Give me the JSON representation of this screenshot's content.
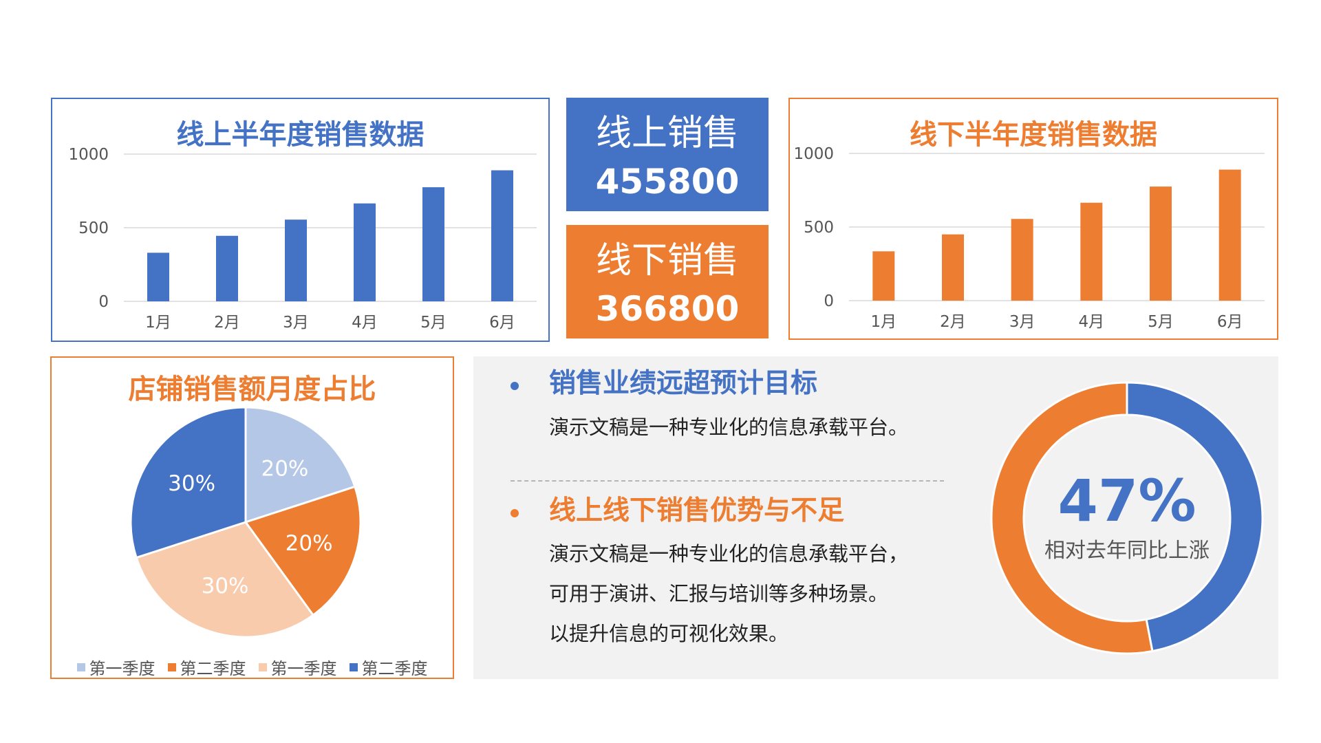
{
  "colors": {
    "blue": "#4472c4",
    "orange": "#ed7d31",
    "light_blue": "#b4c7e7",
    "peach": "#f8cbad",
    "panel_gray": "#f2f2f2"
  },
  "kpis": {
    "online_label": "线上销售",
    "online_value": "455800",
    "offline_label": "线下销售",
    "offline_value": "366800"
  },
  "points": [
    {
      "title": "销售业绩远超预计目标",
      "lines": [
        "演示文稿是一种专业化的信息承载平台。"
      ]
    },
    {
      "title": "线上线下销售优势与不足",
      "lines": [
        "演示文稿是一种专业化的信息承载平台，",
        "可用于演讲、汇报与培训等多种场景。",
        "以提升信息的可视化效果。"
      ]
    }
  ],
  "donut": {
    "value": 47,
    "value_text": "47%",
    "caption": "相对去年同比上涨"
  },
  "chart_data": [
    {
      "type": "bar",
      "title": "线上半年度销售数据",
      "categories": [
        "1月",
        "2月",
        "3月",
        "4月",
        "5月",
        "6月"
      ],
      "values": [
        330,
        445,
        555,
        665,
        775,
        890
      ],
      "ylim": [
        0,
        1000
      ],
      "yticks": [
        "0",
        "500",
        "1000"
      ],
      "color": "#4472c4",
      "grid": true
    },
    {
      "type": "bar",
      "title": "线下半年度销售数据",
      "categories": [
        "1月",
        "2月",
        "3月",
        "4月",
        "5月",
        "6月"
      ],
      "values": [
        335,
        450,
        555,
        665,
        775,
        890
      ],
      "ylim": [
        0,
        1000
      ],
      "yticks": [
        "0",
        "500",
        "1000"
      ],
      "color": "#ed7d31",
      "grid": true
    },
    {
      "type": "pie",
      "title": "店铺销售额月度占比",
      "slices": [
        {
          "label": "第一季度",
          "value": 20,
          "value_text": "20%",
          "color": "#b4c7e7"
        },
        {
          "label": "第二季度",
          "value": 20,
          "value_text": "20%",
          "color": "#ed7d31"
        },
        {
          "label": "第一季度",
          "value": 30,
          "value_text": "30%",
          "color": "#f8cbad"
        },
        {
          "label": "第二季度",
          "value": 30,
          "value_text": "30%",
          "color": "#4472c4"
        }
      ],
      "legend": "bottom"
    },
    {
      "type": "pie",
      "subtype": "donut",
      "value": 47,
      "value_text": "47%",
      "caption": "相对去年同比上涨",
      "colors": [
        "#4472c4",
        "#ed7d31"
      ]
    }
  ]
}
